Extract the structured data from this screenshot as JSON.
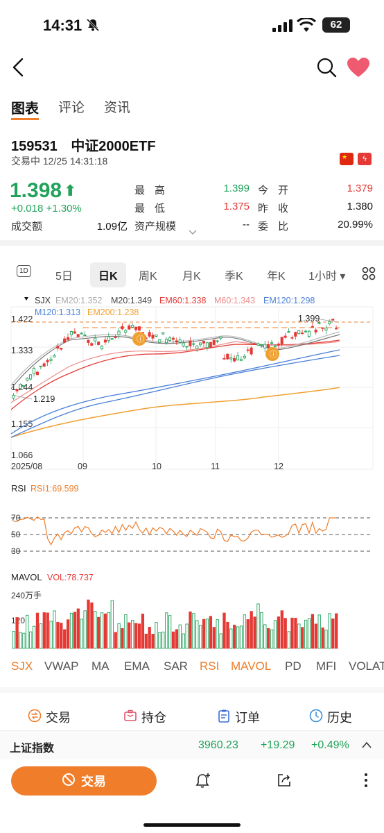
{
  "status_bar": {
    "time": "14:31",
    "battery": "62"
  },
  "tabs": [
    {
      "label": "图表",
      "active": true
    },
    {
      "label": "评论",
      "active": false
    },
    {
      "label": "资讯",
      "active": false
    }
  ],
  "stock": {
    "code": "159531",
    "name": "中证2000ETF",
    "trade_status": "交易中 12/25 14:31:18",
    "price": "1.398",
    "change": "+0.018 +1.30%",
    "volume_label": "成交额",
    "volume_value": "1.09亿"
  },
  "quote": [
    {
      "label": "最高",
      "value": "1.399",
      "color": "green",
      "label2": "今开",
      "value2": "1.379",
      "color2": "red"
    },
    {
      "label": "最低",
      "value": "1.375",
      "color": "red",
      "label2": "昨收",
      "value2": "1.380",
      "color2": "dark"
    },
    {
      "label": "资产规模",
      "value": "--",
      "color": "dark",
      "label2": "委比",
      "value2": "20.99%",
      "color2": "dark"
    }
  ],
  "periods": [
    "1D",
    "5日",
    "日K",
    "周K",
    "月K",
    "季K",
    "年K",
    "1小时 ▾"
  ],
  "active_period": "日K",
  "kline": {
    "legend_row1": [
      {
        "text": "SJX",
        "color": "#333333"
      },
      {
        "text": "EM20:1.352",
        "color": "#aaaaaa"
      },
      {
        "text": "M20:1.349",
        "color": "#444444"
      },
      {
        "text": "EM60:1.338",
        "color": "#e53935"
      },
      {
        "text": "M60:1.343",
        "color": "#ee8a8a"
      },
      {
        "text": "EM120:1.298",
        "color": "#4a7fd9"
      }
    ],
    "legend_row2": [
      {
        "text": "M120:1.313",
        "color": "#4a7fd9"
      },
      {
        "text": "EM200:1.238",
        "color": "#f0a030"
      }
    ],
    "y_ticks": [
      "1.422",
      "1.333",
      "1.244",
      "1.155",
      "1.066"
    ],
    "x_ticks": [
      "2025/08",
      "09",
      "10",
      "11",
      "12"
    ],
    "high_label": "1.399",
    "low_label": "1.219"
  },
  "rsi": {
    "title": "RSI",
    "value_label": "RSI1:69.599",
    "levels": [
      "70",
      "50",
      "30"
    ]
  },
  "mavol": {
    "title": "MAVOL",
    "value_label": "VOL:78.737",
    "ticks": [
      "240万手",
      "120"
    ]
  },
  "indicators": [
    {
      "label": "SJX",
      "on": true
    },
    {
      "label": "VWAP",
      "on": false
    },
    {
      "label": "MA",
      "on": false
    },
    {
      "label": "EMA",
      "on": false
    },
    {
      "label": "SAR",
      "on": false
    },
    {
      "label": "RSI",
      "on": true
    },
    {
      "label": "MAVOL",
      "on": true
    },
    {
      "label": "PD",
      "on": false
    },
    {
      "label": "MFI",
      "on": false
    },
    {
      "label": "VOLAT",
      "on": false
    }
  ],
  "actions": [
    "交易",
    "持仓",
    "订单",
    "历史"
  ],
  "index_bar": {
    "name": "上证指数",
    "value": "3960.23",
    "change": "+19.29",
    "pct": "+0.49%"
  },
  "bottom": {
    "trade_label": "交易"
  },
  "colors": {
    "up": "#e53935",
    "down": "#22a35b",
    "accent": "#ef7d2a"
  }
}
